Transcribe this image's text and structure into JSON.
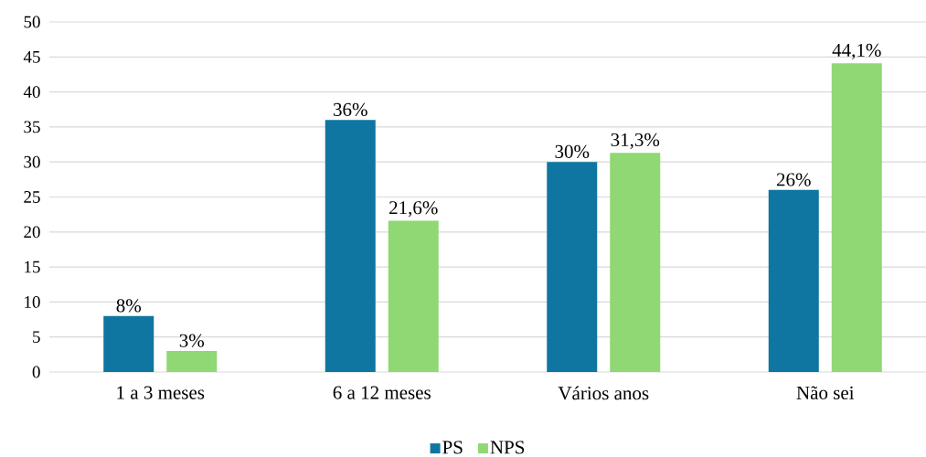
{
  "chart_data": {
    "type": "bar",
    "categories": [
      "1 a 3 meses",
      "6 a 12 meses",
      "Vários anos",
      "Não sei"
    ],
    "series": [
      {
        "name": "PS",
        "color": "#0e76a0",
        "values": [
          8,
          36,
          30,
          26
        ],
        "value_labels": [
          "8%",
          "36%",
          "30%",
          "26%"
        ]
      },
      {
        "name": "NPS",
        "color": "#8fd873",
        "values": [
          3,
          21.6,
          31.3,
          44.1
        ],
        "value_labels": [
          "3%",
          "21,6%",
          "31,3%",
          "44,1%"
        ]
      }
    ],
    "ylim": [
      0,
      50
    ],
    "yticks": [
      0,
      5,
      10,
      15,
      20,
      25,
      30,
      35,
      40,
      45,
      50
    ],
    "grid": "y",
    "legend": "bottom"
  }
}
